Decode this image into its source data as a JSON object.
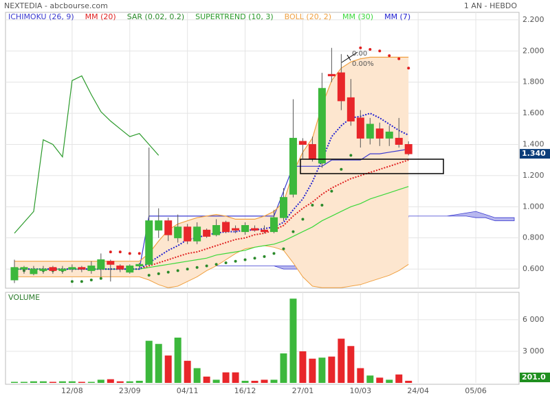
{
  "chart_data": [
    {
      "type": "candlestick",
      "title": "NEXTEDIA - abcbourse.com",
      "subtitle": "1 AN - HEBDO",
      "categories": [
        null,
        null,
        null,
        null,
        null,
        null,
        "12/08",
        null,
        null,
        null,
        null,
        null,
        "23/09",
        null,
        null,
        null,
        null,
        null,
        "04/11",
        null,
        null,
        null,
        null,
        null,
        "16/12",
        null,
        null,
        null,
        null,
        null,
        "27/01",
        null,
        null,
        null,
        null,
        null,
        "10/03",
        null,
        null,
        null,
        null,
        null,
        "24/04",
        null,
        null,
        null,
        null,
        null,
        "05/06",
        null,
        null,
        null,
        null
      ],
      "ylim": [
        0.477,
        2.248
      ],
      "yticks": [
        {
          "value": 2.2,
          "label": "2.200"
        },
        {
          "value": 2.0,
          "label": "2.000"
        },
        {
          "value": 1.8,
          "label": "1.800"
        },
        {
          "value": 1.6,
          "label": "1.600"
        },
        {
          "value": 1.4,
          "label": "1.400"
        },
        {
          "value": 1.2,
          "label": "1.200"
        },
        {
          "value": 1.0,
          "label": "1.000"
        },
        {
          "value": 0.8,
          "label": "0.800"
        },
        {
          "value": 0.6,
          "label": "0.600"
        }
      ],
      "grid": true,
      "up_color": "#3cb83c",
      "down_color": "#e8262a",
      "ohlc": {
        "open": [
          0.53,
          0.6,
          0.57,
          0.59,
          0.61,
          0.59,
          0.6,
          0.61,
          0.59,
          0.6,
          0.65,
          0.62,
          0.58,
          0.62,
          0.63,
          0.85,
          0.91,
          0.8,
          0.87,
          0.78,
          0.85,
          0.82,
          0.9,
          0.86,
          0.84,
          0.86,
          0.85,
          0.84,
          0.93,
          1.08,
          1.42,
          1.4,
          1.28,
          1.85,
          1.86,
          1.7,
          1.57,
          1.44,
          1.5,
          1.44,
          1.44,
          1.4,
          null,
          null,
          null,
          null,
          null,
          null,
          null,
          null,
          null,
          null,
          null
        ],
        "high": [
          0.66,
          0.62,
          0.62,
          0.62,
          0.62,
          0.62,
          0.63,
          0.62,
          0.65,
          0.7,
          0.66,
          0.63,
          0.63,
          0.64,
          1.38,
          0.99,
          0.93,
          0.95,
          0.89,
          0.9,
          0.86,
          0.92,
          0.91,
          0.88,
          0.9,
          0.88,
          0.88,
          0.98,
          1.12,
          1.69,
          1.44,
          1.45,
          1.86,
          2.02,
          1.98,
          1.82,
          1.62,
          1.57,
          1.54,
          1.52,
          1.57,
          1.42,
          null,
          null,
          null,
          null,
          null,
          null,
          null,
          null,
          null,
          null,
          null
        ],
        "low": [
          0.51,
          0.57,
          0.56,
          0.57,
          0.57,
          0.57,
          0.58,
          0.58,
          0.57,
          0.55,
          0.52,
          0.58,
          0.57,
          0.61,
          0.62,
          0.8,
          0.78,
          0.77,
          0.76,
          0.76,
          0.8,
          0.81,
          0.83,
          0.83,
          0.82,
          0.84,
          0.83,
          0.83,
          0.91,
          1.06,
          1.31,
          1.29,
          1.25,
          1.8,
          1.62,
          1.52,
          1.38,
          1.4,
          1.39,
          1.39,
          1.38,
          1.33,
          null,
          null,
          null,
          null,
          null,
          null,
          null,
          null,
          null,
          null,
          null
        ],
        "close": [
          0.61,
          0.61,
          0.6,
          0.6,
          0.59,
          0.6,
          0.61,
          0.6,
          0.62,
          0.66,
          0.63,
          0.6,
          0.62,
          0.63,
          0.91,
          0.91,
          0.82,
          0.87,
          0.78,
          0.87,
          0.81,
          0.88,
          0.84,
          0.85,
          0.88,
          0.85,
          0.84,
          0.93,
          1.06,
          1.44,
          1.4,
          1.31,
          1.76,
          1.84,
          1.68,
          1.55,
          1.44,
          1.53,
          1.44,
          1.48,
          1.4,
          1.34,
          null,
          null,
          null,
          null,
          null,
          null,
          null,
          null,
          null,
          null,
          null
        ]
      },
      "last_label": "1.340",
      "annotations": [
        "0.00",
        "0.00%"
      ],
      "indicators": [
        {
          "name": "ICHIMOKU (26, 9)",
          "color": "#3a3ad0",
          "style": "line",
          "cloud_color": "#9a9ae8",
          "values": [
            0.6,
            0.6,
            0.6,
            0.6,
            0.6,
            0.6,
            0.6,
            0.6,
            0.6,
            0.6,
            0.6,
            0.6,
            0.6,
            0.6,
            0.94,
            0.94,
            0.94,
            0.94,
            0.94,
            0.94,
            0.94,
            0.94,
            0.94,
            0.94,
            0.94,
            0.94,
            0.94,
            0.94,
            1.1,
            1.26,
            1.26,
            1.26,
            1.26,
            1.3,
            1.3,
            1.3,
            1.3,
            1.34,
            1.34,
            1.35,
            1.36,
            1.37,
            null,
            null,
            null,
            null,
            null,
            null,
            null,
            null,
            null,
            null,
            null
          ],
          "span_a": [
            null,
            null,
            null,
            null,
            null,
            null,
            null,
            null,
            null,
            null,
            null,
            null,
            null,
            null,
            null,
            0.62,
            0.62,
            0.62,
            0.62,
            0.62,
            0.62,
            0.62,
            0.62,
            0.62,
            0.62,
            0.62,
            0.62,
            0.62,
            0.62,
            0.62,
            0.62,
            0.62,
            0.62,
            0.62,
            0.62,
            0.62,
            0.62,
            0.62,
            0.62,
            0.62,
            0.62,
            0.94,
            0.94,
            0.94,
            0.94,
            0.94,
            0.95,
            0.96,
            0.97,
            0.95,
            0.93,
            0.93,
            0.93
          ],
          "span_b": [
            null,
            null,
            null,
            null,
            null,
            null,
            null,
            null,
            null,
            null,
            null,
            null,
            null,
            null,
            null,
            0.62,
            0.62,
            0.62,
            0.62,
            0.62,
            0.62,
            0.62,
            0.62,
            0.62,
            0.62,
            0.62,
            0.62,
            0.62,
            0.6,
            0.6,
            0.6,
            0.6,
            0.6,
            0.6,
            0.6,
            0.6,
            0.6,
            0.6,
            0.6,
            0.6,
            0.6,
            0.94,
            0.94,
            0.94,
            0.94,
            0.94,
            0.94,
            0.94,
            0.93,
            0.93,
            0.91,
            0.91,
            0.91
          ]
        },
        {
          "name": "MM (20)",
          "color": "#e02020",
          "style": "dotted",
          "values": [
            0.6,
            0.6,
            0.6,
            0.6,
            0.6,
            0.6,
            0.6,
            0.6,
            0.6,
            0.6,
            0.6,
            0.6,
            0.6,
            0.6,
            0.62,
            0.64,
            0.66,
            0.68,
            0.7,
            0.71,
            0.73,
            0.75,
            0.77,
            0.79,
            0.8,
            0.82,
            0.83,
            0.85,
            0.88,
            0.94,
            0.99,
            1.03,
            1.08,
            1.12,
            1.15,
            1.18,
            1.2,
            1.22,
            1.24,
            1.26,
            1.28,
            1.3,
            null,
            null,
            null,
            null,
            null,
            null,
            null,
            null,
            null,
            null,
            null
          ]
        },
        {
          "name": "SAR (0.02, 0.2)",
          "color": "#2a8a2a",
          "color_above": "#e02020",
          "style": "dots",
          "values": [
            0.59,
            0.59,
            0.59,
            0.59,
            0.59,
            0.59,
            0.52,
            0.52,
            0.53,
            0.54,
            0.71,
            0.71,
            0.7,
            0.7,
            0.56,
            0.57,
            0.58,
            0.59,
            0.6,
            0.61,
            0.62,
            0.63,
            0.64,
            0.65,
            0.66,
            0.67,
            0.68,
            0.7,
            0.73,
            0.84,
            0.92,
            1.01,
            1.01,
            1.1,
            1.24,
            1.33,
            2.02,
            2.01,
            2.0,
            1.97,
            1.95,
            1.89,
            null,
            null,
            null,
            null,
            null,
            null,
            null,
            null,
            null,
            null,
            null
          ]
        },
        {
          "name": "SUPERTREND (10, 3)",
          "color": "#2a9a2a",
          "style": "line",
          "values": [
            0.83,
            0.9,
            0.97,
            1.43,
            1.4,
            1.32,
            1.81,
            1.84,
            1.72,
            1.61,
            1.55,
            1.5,
            1.45,
            1.47,
            1.4,
            1.33,
            null,
            null,
            null,
            null,
            null,
            null,
            null,
            null,
            null,
            null,
            null,
            null,
            null,
            null,
            null,
            null,
            null,
            null,
            null,
            null,
            null,
            null,
            null,
            null,
            null,
            null,
            null,
            null,
            null,
            null,
            null,
            null,
            null,
            null,
            null,
            null,
            null
          ]
        },
        {
          "name": "BOLL (20, 2)",
          "color": "#f0a040",
          "style": "band",
          "band_color": "#fde6cf",
          "values": [
            0.65,
            0.65,
            0.65,
            0.65,
            0.65,
            0.65,
            0.65,
            0.65,
            0.65,
            0.65,
            0.65,
            0.65,
            0.65,
            0.65,
            0.7,
            0.78,
            0.85,
            0.89,
            0.91,
            0.93,
            0.94,
            0.95,
            0.94,
            0.92,
            0.92,
            0.92,
            0.94,
            0.97,
            1.03,
            1.22,
            1.35,
            1.44,
            1.65,
            1.81,
            1.89,
            1.93,
            1.95,
            1.96,
            1.96,
            1.96,
            1.96,
            1.96,
            null,
            null,
            null,
            null,
            null,
            null,
            null,
            null,
            null,
            null,
            null
          ],
          "lower": [
            0.55,
            0.55,
            0.55,
            0.55,
            0.55,
            0.55,
            0.55,
            0.55,
            0.55,
            0.55,
            0.55,
            0.55,
            0.55,
            0.55,
            0.53,
            0.5,
            0.48,
            0.49,
            0.52,
            0.55,
            0.59,
            0.62,
            0.66,
            0.7,
            0.73,
            0.74,
            0.75,
            0.74,
            0.72,
            0.64,
            0.55,
            0.49,
            0.48,
            0.48,
            0.48,
            0.49,
            0.5,
            0.52,
            0.54,
            0.56,
            0.59,
            0.63,
            null,
            null,
            null,
            null,
            null,
            null,
            null,
            null,
            null,
            null,
            null
          ]
        },
        {
          "name": "MM (30)",
          "color": "#3ad83a",
          "style": "line",
          "values": [
            0.6,
            0.6,
            0.6,
            0.6,
            0.6,
            0.6,
            0.6,
            0.6,
            0.6,
            0.6,
            0.6,
            0.6,
            0.6,
            0.6,
            0.61,
            0.62,
            0.63,
            0.64,
            0.65,
            0.66,
            0.67,
            0.69,
            0.7,
            0.71,
            0.72,
            0.74,
            0.75,
            0.76,
            0.78,
            0.81,
            0.84,
            0.87,
            0.91,
            0.94,
            0.97,
            1.0,
            1.02,
            1.05,
            1.07,
            1.09,
            1.11,
            1.13,
            null,
            null,
            null,
            null,
            null,
            null,
            null,
            null,
            null,
            null,
            null
          ]
        },
        {
          "name": "MM (7)",
          "color": "#2020d0",
          "style": "dotted",
          "values": [
            0.6,
            0.6,
            0.6,
            0.6,
            0.6,
            0.6,
            0.6,
            0.6,
            0.6,
            0.6,
            0.6,
            0.6,
            0.6,
            0.6,
            0.64,
            0.68,
            0.72,
            0.75,
            0.79,
            0.8,
            0.82,
            0.83,
            0.84,
            0.84,
            0.85,
            0.85,
            0.86,
            0.87,
            0.9,
            0.98,
            1.05,
            1.16,
            1.3,
            1.45,
            1.52,
            1.57,
            1.58,
            1.6,
            1.57,
            1.53,
            1.49,
            1.46,
            null,
            null,
            null,
            null,
            null,
            null,
            null,
            null,
            null,
            null,
            null
          ]
        }
      ]
    },
    {
      "type": "bar",
      "title": "VOLUME",
      "values": [
        100,
        100,
        150,
        150,
        100,
        150,
        150,
        100,
        100,
        300,
        350,
        150,
        150,
        200,
        4000,
        3700,
        2600,
        4300,
        2100,
        1400,
        600,
        300,
        1000,
        1000,
        200,
        200,
        300,
        300,
        2800,
        8000,
        3000,
        2300,
        2400,
        2500,
        4200,
        3500,
        1400,
        700,
        500,
        300,
        800,
        201,
        null,
        null,
        null,
        null,
        null,
        null,
        null,
        null,
        null,
        null,
        null
      ],
      "last_label": "201.0",
      "ylim": [
        0,
        8600
      ],
      "yticks": [
        {
          "value": 6000,
          "label": "6 000"
        },
        {
          "value": 3000,
          "label": "3 000"
        }
      ],
      "grid": true
    }
  ]
}
